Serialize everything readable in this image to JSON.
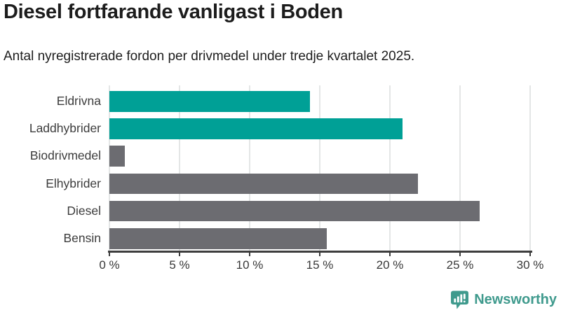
{
  "title": "Diesel fortfarande vanligast i Boden",
  "subtitle": "Antal nyregistrerade fordon per drivmedel under tredje kvartalet 2025.",
  "chart_data": {
    "type": "bar",
    "orientation": "horizontal",
    "title": "Diesel fortfarande vanligast i Boden",
    "subtitle": "Antal nyregistrerade fordon per drivmedel under tredje kvartalet 2025.",
    "categories": [
      "Eldrivna",
      "Laddhybrider",
      "Biodrivmedel",
      "Elhybrider",
      "Diesel",
      "Bensin"
    ],
    "values": [
      14.3,
      20.9,
      1.1,
      22.0,
      26.4,
      15.5
    ],
    "unit": "%",
    "xlabel": "",
    "ylabel": "",
    "xlim": [
      0,
      30
    ],
    "xticks": [
      0,
      5,
      10,
      15,
      20,
      25,
      30
    ],
    "xtick_suffix": " %",
    "grid": true,
    "legend": "none",
    "bar_colors": [
      "#00a096",
      "#00a096",
      "#6c6c71",
      "#6c6c71",
      "#6c6c71",
      "#6c6c71"
    ]
  },
  "colors": {
    "accent_teal": "#00a096",
    "bar_gray": "#6c6c71",
    "gridline": "#e4e6e6",
    "axis": "#3d3d3d",
    "text_dark": "#1c1c1c",
    "label_gray": "#3c3c3c",
    "logo_teal": "#3f9a8d"
  },
  "branding": {
    "logo_text": "Newsworthy",
    "logo_icon": "bar-chart-speech-bubble-icon"
  }
}
